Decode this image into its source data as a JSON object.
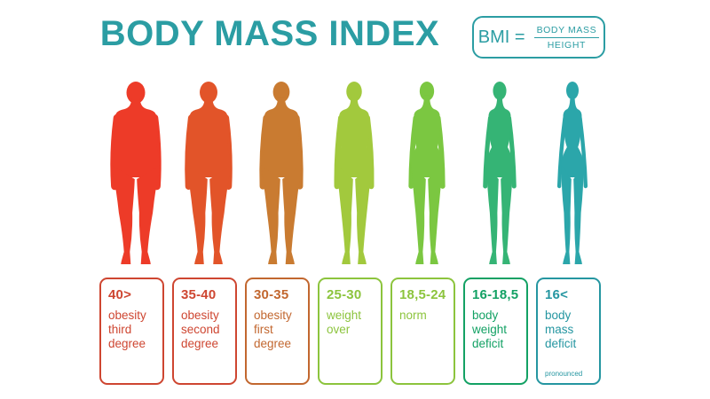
{
  "title": "BODY MASS INDEX",
  "theme": {
    "title_color": "#2B9DA3",
    "background": "#FFFFFF"
  },
  "formula": {
    "lhs": "BMI =",
    "numerator": "BODY MASS",
    "denominator": "HEIGHT"
  },
  "categories": [
    {
      "range": "40>",
      "label": "obesity third degree",
      "note": "",
      "accent_color": "#CE4631",
      "figure_color": "#ED3B28",
      "body_scale": 1.0
    },
    {
      "range": "35-40",
      "label": "obesity second degree",
      "note": "",
      "accent_color": "#CE4631",
      "figure_color": "#E25429",
      "body_scale": 0.85
    },
    {
      "range": "30-35",
      "label": "obesity first degree",
      "note": "",
      "accent_color": "#C2672F",
      "figure_color": "#C97B31",
      "body_scale": 0.68
    },
    {
      "range": "25-30",
      "label": "weight over",
      "note": "",
      "accent_color": "#8CC43D",
      "figure_color": "#A2C93D",
      "body_scale": 0.5
    },
    {
      "range": "18,5-24",
      "label": "norm",
      "note": "",
      "accent_color": "#8CC43D",
      "figure_color": "#7BC741",
      "body_scale": 0.33
    },
    {
      "range": "16-18,5",
      "label": "body weight deficit",
      "note": "",
      "accent_color": "#13A164",
      "figure_color": "#35B475",
      "body_scale": 0.16
    },
    {
      "range": "16<",
      "label": "body mass deficit",
      "note": "pronounced",
      "accent_color": "#2596A1",
      "figure_color": "#2BA6AA",
      "body_scale": 0.0
    }
  ]
}
